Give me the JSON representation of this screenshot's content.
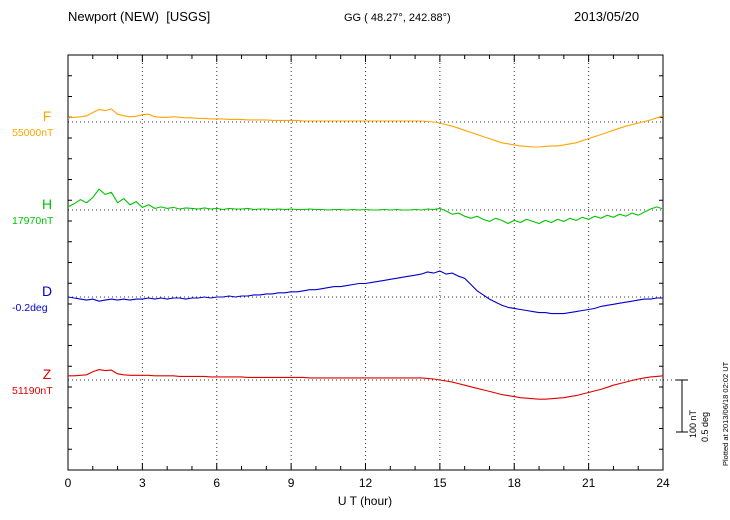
{
  "header": {
    "station": "Newport (NEW)  [USGS]",
    "coordinates": "GG ( 48.27°, 242.88°)",
    "date": "2013/05/20"
  },
  "footer_note": "Plotted at 2013/06/18 02:02 UT",
  "scale_bar": {
    "labels": [
      "100 nT",
      "0.5 deg"
    ]
  },
  "chart_data": {
    "type": "line",
    "title": "Newport (NEW) [USGS] magnetogram 2013/05/20",
    "xlabel": "U T (hour)",
    "x_range": [
      0,
      24
    ],
    "x_ticks": [
      0,
      3,
      6,
      9,
      12,
      15,
      18,
      21,
      24
    ],
    "x_step_hours": 0.25,
    "grid": "dotted vertical at 3h intervals, dotted baseline per channel",
    "scale": {
      "nT_per_division": 100,
      "deg_per_division": 0.5
    },
    "series": [
      {
        "name": "F",
        "axis_label": "F",
        "baseline_label": "55000nT",
        "unit": "nT",
        "color": "#FFA500",
        "values": [
          8,
          9,
          10,
          12,
          18,
          24,
          22,
          25,
          15,
          12,
          10,
          11,
          14,
          15,
          10,
          9,
          9,
          10,
          9,
          8,
          8,
          7,
          7,
          6,
          6,
          6,
          5,
          5,
          5,
          4,
          4,
          4,
          4,
          3,
          3,
          3,
          3,
          3,
          2,
          2,
          2,
          2,
          2,
          2,
          2,
          2,
          2,
          2,
          2,
          2,
          2,
          2,
          2,
          2,
          2,
          2,
          2,
          2,
          1,
          0,
          -2,
          -5,
          -8,
          -12,
          -16,
          -20,
          -24,
          -28,
          -32,
          -36,
          -40,
          -42,
          -44,
          -46,
          -47,
          -48,
          -48,
          -47,
          -46,
          -46,
          -44,
          -42,
          -40,
          -36,
          -32,
          -28,
          -24,
          -20,
          -16,
          -12,
          -8,
          -5,
          -2,
          1,
          4,
          8,
          12
        ]
      },
      {
        "name": "H",
        "axis_label": "H",
        "baseline_label": "17970nT",
        "unit": "nT",
        "color": "#00C400",
        "values": [
          6,
          12,
          20,
          14,
          24,
          40,
          30,
          34,
          14,
          22,
          10,
          16,
          5,
          10,
          3,
          6,
          3,
          5,
          2,
          4,
          3,
          2,
          4,
          2,
          3,
          1,
          3,
          2,
          2,
          3,
          1,
          2,
          2,
          1,
          2,
          1,
          2,
          1,
          1,
          2,
          1,
          1,
          0,
          1,
          1,
          0,
          1,
          0,
          1,
          0,
          0,
          1,
          0,
          1,
          0,
          0,
          1,
          0,
          2,
          1,
          3,
          -2,
          -8,
          -6,
          -12,
          -16,
          -12,
          -18,
          -22,
          -16,
          -20,
          -26,
          -20,
          -24,
          -18,
          -22,
          -26,
          -20,
          -24,
          -18,
          -22,
          -16,
          -20,
          -14,
          -18,
          -12,
          -16,
          -10,
          -14,
          -8,
          -12,
          -6,
          -10,
          -4,
          2,
          6,
          2
        ]
      },
      {
        "name": "D",
        "axis_label": "D",
        "baseline_label": "-0.2deg",
        "unit": "deg",
        "color": "#0000D0",
        "values": [
          0.0,
          -0.01,
          -0.02,
          -0.03,
          -0.02,
          -0.04,
          -0.03,
          -0.02,
          -0.03,
          -0.02,
          -0.03,
          -0.02,
          -0.02,
          -0.01,
          -0.02,
          -0.01,
          -0.02,
          -0.01,
          -0.01,
          -0.02,
          -0.01,
          -0.01,
          0.0,
          -0.01,
          0.0,
          0.0,
          0.01,
          0.0,
          0.01,
          0.01,
          0.02,
          0.02,
          0.03,
          0.03,
          0.04,
          0.04,
          0.05,
          0.05,
          0.06,
          0.07,
          0.07,
          0.08,
          0.09,
          0.1,
          0.1,
          0.11,
          0.12,
          0.13,
          0.13,
          0.14,
          0.15,
          0.16,
          0.17,
          0.18,
          0.19,
          0.2,
          0.21,
          0.22,
          0.24,
          0.23,
          0.25,
          0.22,
          0.23,
          0.2,
          0.18,
          0.12,
          0.06,
          0.02,
          -0.02,
          -0.05,
          -0.08,
          -0.1,
          -0.11,
          -0.12,
          -0.13,
          -0.14,
          -0.15,
          -0.15,
          -0.16,
          -0.16,
          -0.16,
          -0.15,
          -0.14,
          -0.13,
          -0.12,
          -0.11,
          -0.09,
          -0.08,
          -0.07,
          -0.06,
          -0.05,
          -0.04,
          -0.03,
          -0.02,
          -0.02,
          -0.01,
          -0.01
        ]
      },
      {
        "name": "Z",
        "axis_label": "Z",
        "baseline_label": "51190nT",
        "unit": "nT",
        "color": "#E00000",
        "values": [
          8,
          8,
          9,
          10,
          16,
          20,
          18,
          19,
          12,
          10,
          9,
          9,
          9,
          9,
          8,
          8,
          8,
          8,
          7,
          7,
          7,
          7,
          7,
          6,
          6,
          6,
          6,
          6,
          6,
          5,
          5,
          5,
          5,
          5,
          5,
          5,
          5,
          5,
          5,
          4,
          4,
          4,
          4,
          4,
          4,
          4,
          4,
          4,
          4,
          4,
          4,
          4,
          4,
          4,
          4,
          4,
          4,
          4,
          3,
          2,
          0,
          -2,
          -4,
          -7,
          -10,
          -13,
          -16,
          -19,
          -22,
          -25,
          -28,
          -30,
          -32,
          -34,
          -35,
          -36,
          -37,
          -37,
          -36,
          -35,
          -34,
          -32,
          -30,
          -27,
          -24,
          -21,
          -18,
          -14,
          -10,
          -7,
          -4,
          -1,
          2,
          4,
          6,
          7,
          8
        ]
      }
    ]
  }
}
